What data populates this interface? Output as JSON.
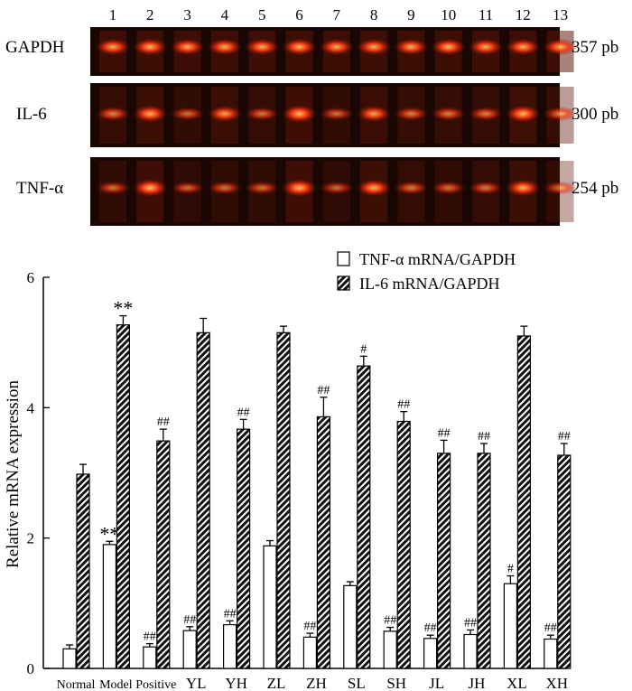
{
  "gel": {
    "lane_numbers": [
      "1",
      "2",
      "3",
      "4",
      "5",
      "6",
      "7",
      "8",
      "9",
      "10",
      "11",
      "12",
      "13"
    ],
    "rows": [
      {
        "name": "GAPDH",
        "size": "357 pb",
        "intensity": [
          0.8,
          0.85,
          0.8,
          0.8,
          0.8,
          0.85,
          0.8,
          0.8,
          0.8,
          0.85,
          0.8,
          0.8,
          0.8
        ]
      },
      {
        "name": "IL-6",
        "size": "300 pb",
        "intensity": [
          0.5,
          0.85,
          0.35,
          0.75,
          0.4,
          0.95,
          0.35,
          0.75,
          0.45,
          0.45,
          0.45,
          0.9,
          0.5
        ]
      },
      {
        "name": "TNF-α",
        "size": "254 pb",
        "intensity": [
          0.35,
          0.95,
          0.3,
          0.35,
          0.35,
          0.95,
          0.3,
          0.85,
          0.4,
          0.35,
          0.4,
          0.85,
          0.35
        ]
      }
    ]
  },
  "chart_data": {
    "type": "bar",
    "ylabel": "Relative mRNA expression",
    "ylim": [
      0,
      6
    ],
    "yticks": [
      "0",
      "2",
      "4",
      "6"
    ],
    "categories": [
      "Normal",
      "Model",
      "Positive",
      "YL",
      "YH",
      "ZL",
      "ZH",
      "SL",
      "SH",
      "JL",
      "JH",
      "XL",
      "XH"
    ],
    "legend_position": "top-right",
    "series": [
      {
        "name": "TNF-α mRNA/GAPDH",
        "pattern": "open",
        "values": [
          0.3,
          1.9,
          0.33,
          0.58,
          0.67,
          1.88,
          0.48,
          1.27,
          0.57,
          0.46,
          0.52,
          1.3,
          0.45
        ],
        "errors": [
          0.06,
          0.05,
          0.05,
          0.06,
          0.06,
          0.08,
          0.06,
          0.06,
          0.06,
          0.05,
          0.07,
          0.12,
          0.06
        ],
        "annotations": [
          "",
          "**",
          "##",
          "##",
          "##",
          "",
          "##",
          "",
          "##",
          "##",
          "##",
          "#",
          "##"
        ]
      },
      {
        "name": "IL-6 mRNA/GAPDH",
        "pattern": "hatched",
        "values": [
          2.98,
          5.27,
          3.49,
          5.15,
          3.67,
          5.15,
          3.86,
          4.64,
          3.79,
          3.3,
          3.3,
          5.1,
          3.27
        ],
        "errors": [
          0.15,
          0.14,
          0.18,
          0.22,
          0.15,
          0.1,
          0.3,
          0.15,
          0.15,
          0.2,
          0.15,
          0.15,
          0.18
        ],
        "annotations": [
          "",
          "**",
          "##",
          "",
          "##",
          "",
          "##",
          "#",
          "##",
          "##",
          "##",
          "",
          "##"
        ]
      }
    ]
  }
}
